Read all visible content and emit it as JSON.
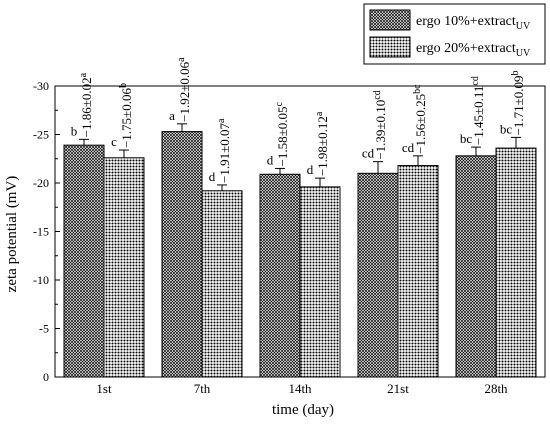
{
  "chart_data": {
    "type": "bar",
    "xlabel": "time (day)",
    "ylabel": "zeta potential (mV)",
    "ylim": [
      0,
      -30
    ],
    "yticks": [
      "0",
      "-5",
      "-10",
      "-15",
      "-20",
      "-25",
      "-30"
    ],
    "categories": [
      "1st",
      "7th",
      "14th",
      "21st",
      "28th"
    ],
    "legend_position": "top-right",
    "series": [
      {
        "legend_base": "ergo 10%+extract",
        "legend_sub": "UV",
        "pattern": "crosshatch-fine",
        "values": [
          -23.9,
          -25.3,
          -20.9,
          -21.0,
          -22.8
        ],
        "errors": [
          0.6,
          0.8,
          0.6,
          1.2,
          0.9
        ],
        "letters": [
          "b",
          "a",
          "d",
          "cd",
          "bc"
        ],
        "annotations": [
          {
            "main": "−1.86±0.02",
            "sup": "a"
          },
          {
            "main": "−1.92±0.06",
            "sup": "a"
          },
          {
            "main": "−1.58±0.05",
            "sup": "c"
          },
          {
            "main": "−1.39±0.10",
            "sup": "cd"
          },
          {
            "main": "−1.45±0.11",
            "sup": "cd"
          }
        ]
      },
      {
        "legend_base": "ergo 20%+extract",
        "legend_sub": "UV",
        "pattern": "dots",
        "values": [
          -22.6,
          -19.2,
          -19.6,
          -21.8,
          -23.6
        ],
        "errors": [
          0.8,
          0.6,
          0.9,
          1.0,
          1.1
        ],
        "letters": [
          "c",
          "d",
          "d",
          "cd",
          "bc"
        ],
        "annotations": [
          {
            "main": "−1.75±0.06",
            "sup": "b"
          },
          {
            "main": "−1.91±0.07",
            "sup": "a"
          },
          {
            "main": "−1.98±0.12",
            "sup": "a"
          },
          {
            "main": "−1.56±0.25",
            "sup": "bc"
          },
          {
            "main": "−1.71±0.09",
            "sup": "b"
          }
        ]
      }
    ]
  }
}
